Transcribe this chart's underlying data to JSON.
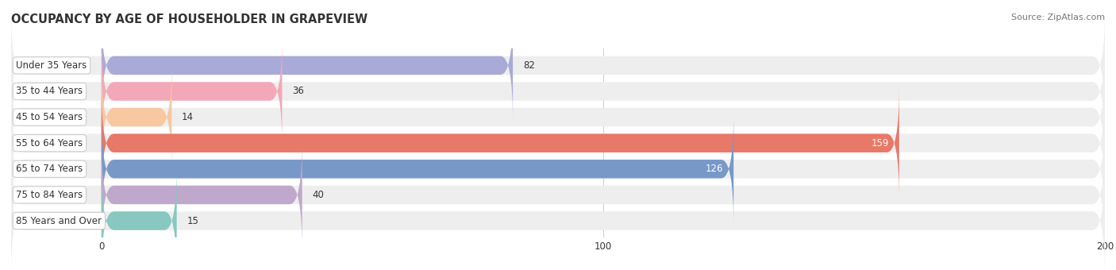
{
  "title": "OCCUPANCY BY AGE OF HOUSEHOLDER IN GRAPEVIEW",
  "source": "Source: ZipAtlas.com",
  "categories": [
    "Under 35 Years",
    "35 to 44 Years",
    "45 to 54 Years",
    "55 to 64 Years",
    "65 to 74 Years",
    "75 to 84 Years",
    "85 Years and Over"
  ],
  "values": [
    82,
    36,
    14,
    159,
    126,
    40,
    15
  ],
  "bar_colors": [
    "#aaaad8",
    "#f2a8b8",
    "#f8c8a0",
    "#e87868",
    "#7898c8",
    "#c0a8cc",
    "#88c8c0"
  ],
  "bar_background": "#eeeeee",
  "background_color": "#ffffff",
  "xlim_min": -18,
  "xlim_max": 200,
  "xticks": [
    0,
    100,
    200
  ],
  "title_fontsize": 10.5,
  "label_fontsize": 8.5,
  "value_fontsize": 8.5,
  "bar_height": 0.72,
  "label_box_color": "#ffffff",
  "label_box_edge": "#cccccc",
  "grid_color": "#cccccc",
  "value_inside_color": "#ffffff",
  "value_outside_color": "#333333",
  "text_color": "#333333",
  "source_color": "#777777"
}
